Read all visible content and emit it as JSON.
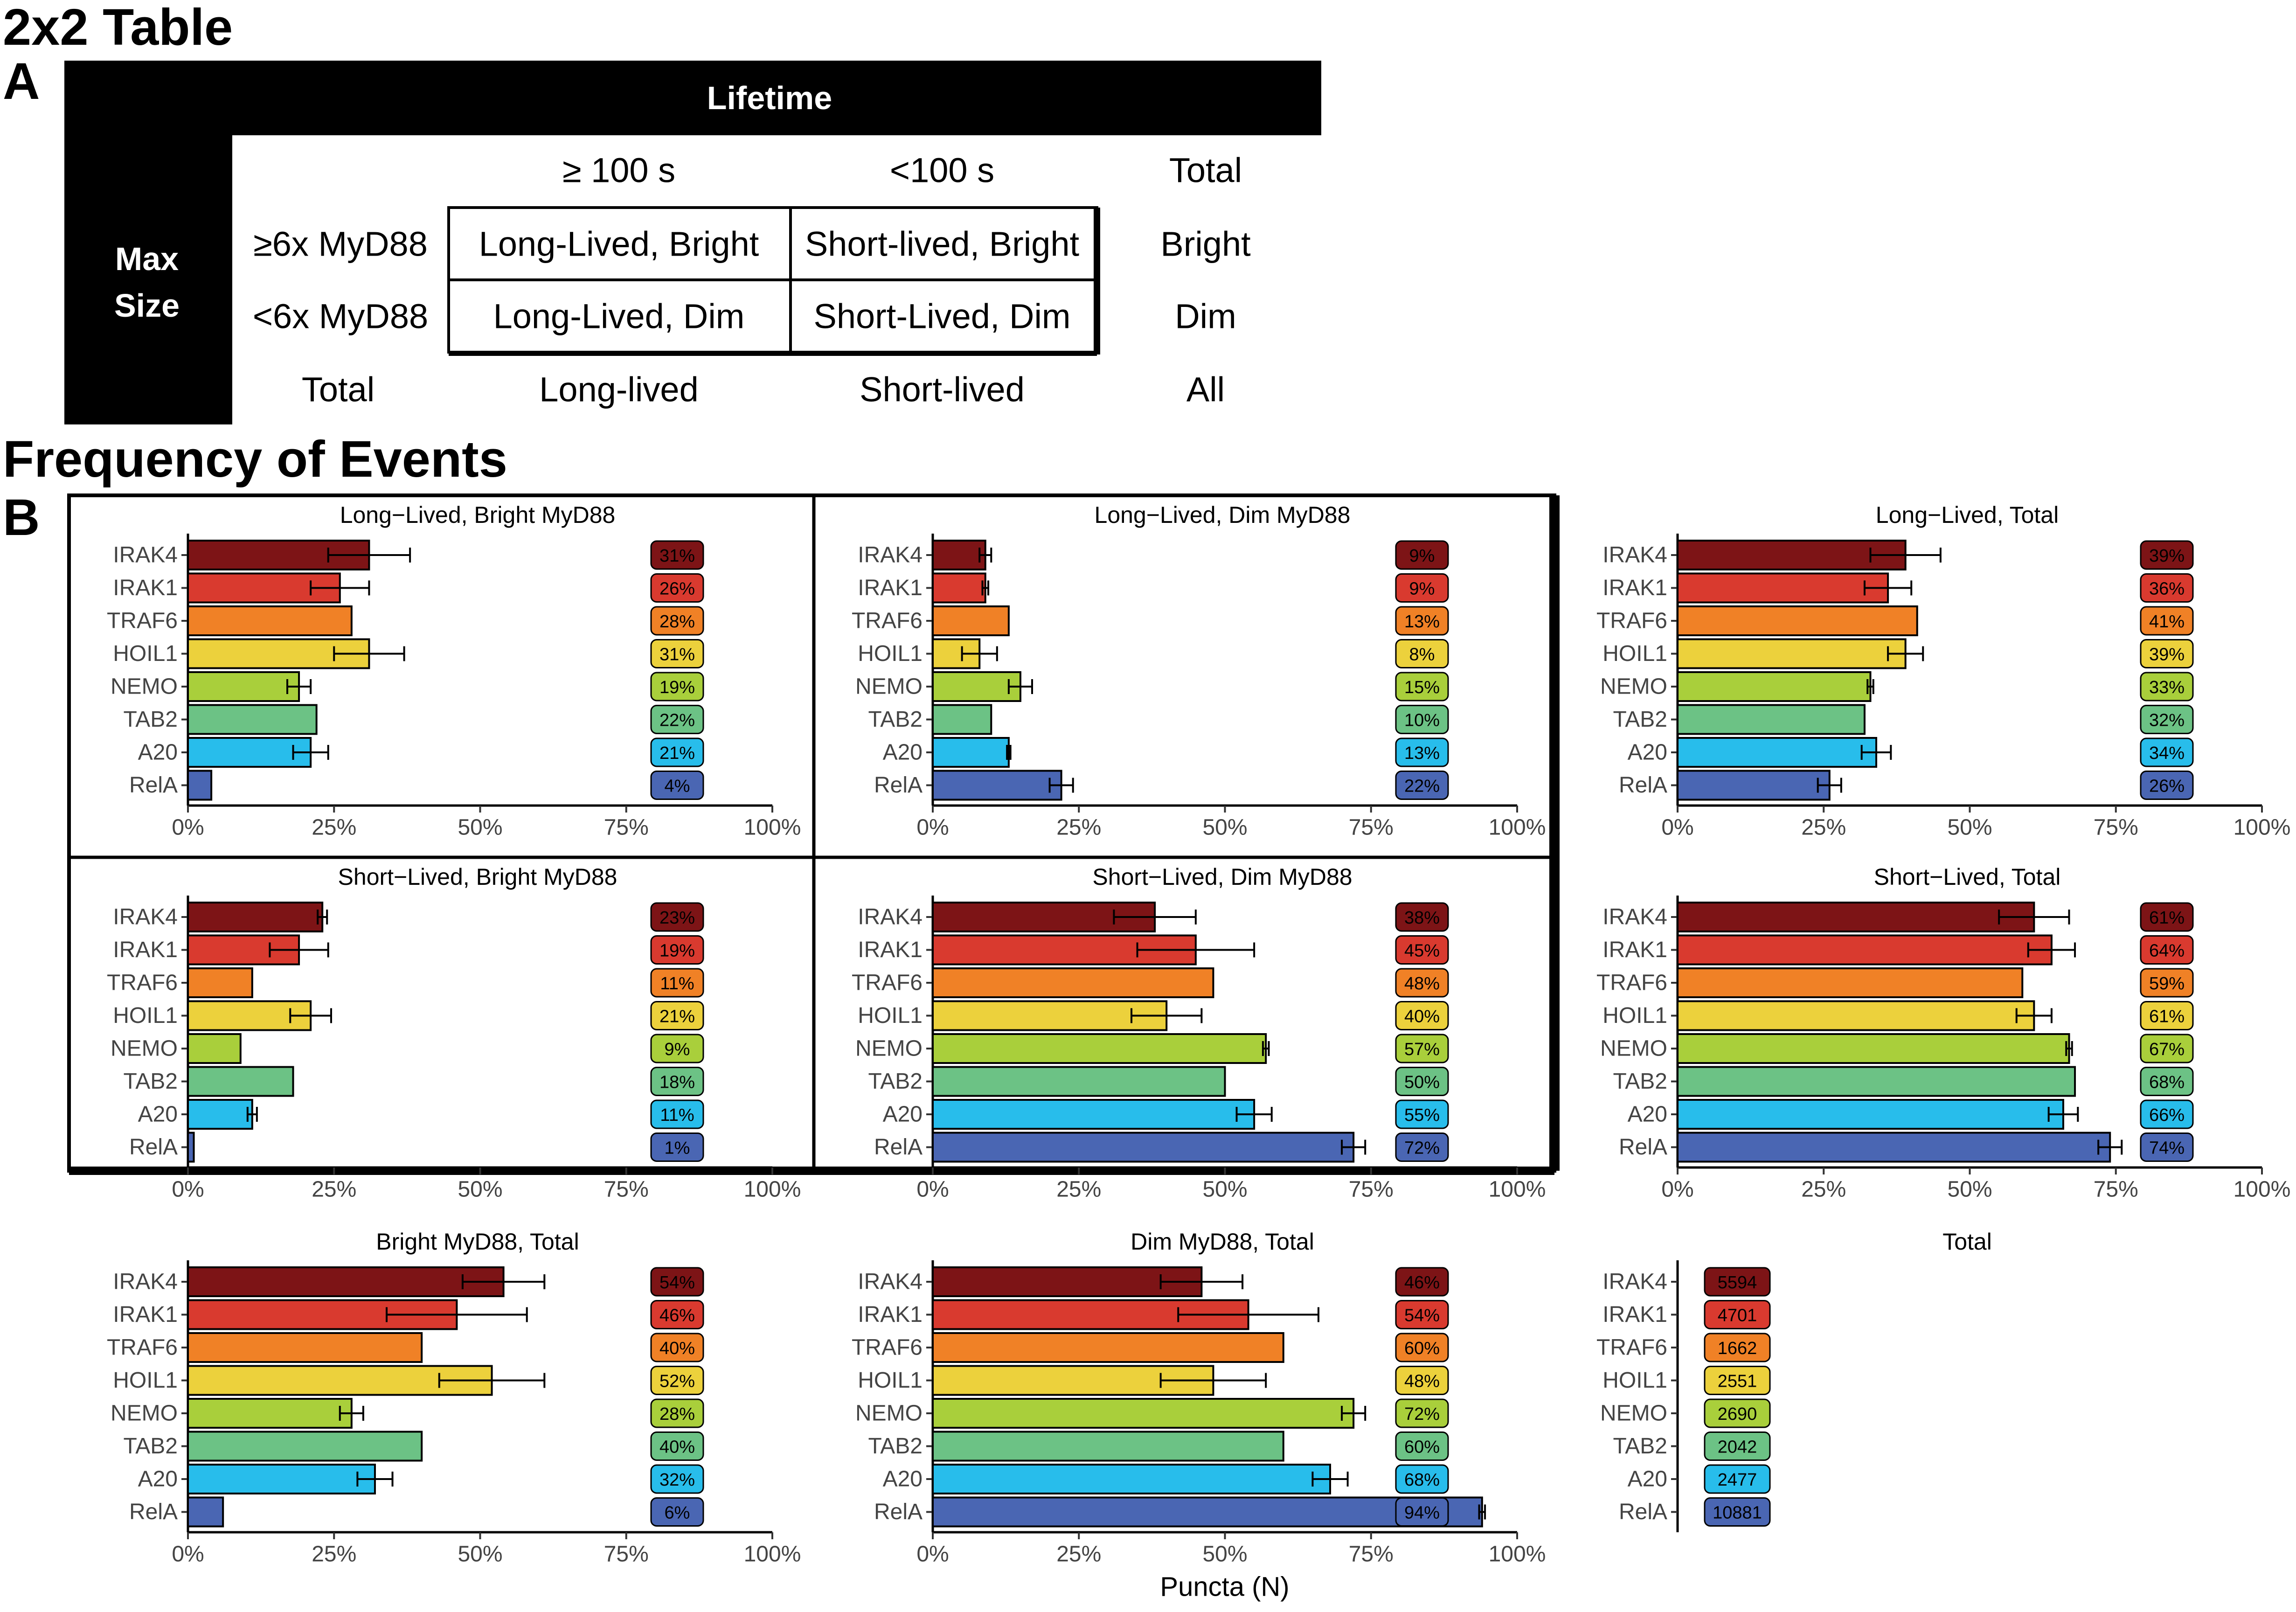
{
  "headings": {
    "table_title": "2x2 Table",
    "panel_a": "A",
    "freq_title": "Frequency of Events",
    "panel_b": "B"
  },
  "table": {
    "col_header": "Lifetime",
    "row_header_line1": "Max",
    "row_header_line2": "Size",
    "col_labels": [
      "≥ 100 s",
      "<100 s",
      "Total"
    ],
    "row_labels": [
      "≥6x MyD88",
      "<6x MyD88",
      "Total"
    ],
    "cells": [
      [
        "Long-Lived, Bright",
        "Short-lived, Bright",
        "Bright"
      ],
      [
        "Long-Lived, Dim",
        "Short-Lived, Dim",
        "Dim"
      ],
      [
        "Long-lived",
        "Short-lived",
        "All"
      ]
    ]
  },
  "colors": {
    "IRAK4": "#7d1416",
    "IRAK1": "#d93a2f",
    "TRAF6": "#f08126",
    "HOIL1": "#ecd13c",
    "NEMO": "#a9cf3b",
    "TAB2": "#6cc285",
    "A20": "#28bdeb",
    "RelA": "#4a66b3"
  },
  "chart_data": [
    {
      "type": "bar",
      "title": "Long−Lived, Bright MyD88",
      "categories": [
        "IRAK4",
        "IRAK1",
        "TRAF6",
        "HOIL1",
        "NEMO",
        "TAB2",
        "A20",
        "RelA"
      ],
      "values": [
        31,
        26,
        28,
        31,
        19,
        22,
        21,
        4
      ],
      "errors": [
        7,
        5,
        0,
        6,
        2,
        0,
        3,
        0
      ],
      "labels": [
        "31%",
        "26%",
        "28%",
        "31%",
        "19%",
        "22%",
        "21%",
        "4%"
      ],
      "xticks": [
        "0%",
        "25%",
        "50%",
        "75%",
        "100%"
      ],
      "xlim": [
        0,
        100
      ]
    },
    {
      "type": "bar",
      "title": "Long−Lived, Dim MyD88",
      "categories": [
        "IRAK4",
        "IRAK1",
        "TRAF6",
        "HOIL1",
        "NEMO",
        "TAB2",
        "A20",
        "RelA"
      ],
      "values": [
        9,
        9,
        13,
        8,
        15,
        10,
        13,
        22
      ],
      "errors": [
        1,
        0.5,
        0,
        3,
        2,
        0,
        0.3,
        2
      ],
      "labels": [
        "9%",
        "9%",
        "13%",
        "8%",
        "15%",
        "10%",
        "13%",
        "22%"
      ],
      "xticks": [
        "0%",
        "25%",
        "50%",
        "75%",
        "100%"
      ],
      "xlim": [
        0,
        100
      ]
    },
    {
      "type": "bar",
      "title": "Long−Lived, Total",
      "categories": [
        "IRAK4",
        "IRAK1",
        "TRAF6",
        "HOIL1",
        "NEMO",
        "TAB2",
        "A20",
        "RelA"
      ],
      "values": [
        39,
        36,
        41,
        39,
        33,
        32,
        34,
        26
      ],
      "errors": [
        6,
        4,
        0,
        3,
        0.5,
        0,
        2.5,
        2
      ],
      "labels": [
        "39%",
        "36%",
        "41%",
        "39%",
        "33%",
        "32%",
        "34%",
        "26%"
      ],
      "xticks": [
        "0%",
        "25%",
        "50%",
        "75%",
        "100%"
      ],
      "xlim": [
        0,
        100
      ]
    },
    {
      "type": "bar",
      "title": "Short−Lived, Bright MyD88",
      "categories": [
        "IRAK4",
        "IRAK1",
        "TRAF6",
        "HOIL1",
        "NEMO",
        "TAB2",
        "A20",
        "RelA"
      ],
      "values": [
        23,
        19,
        11,
        21,
        9,
        18,
        11,
        1
      ],
      "errors": [
        0.8,
        5,
        0,
        3.5,
        0,
        0,
        0.8,
        0
      ],
      "labels": [
        "23%",
        "19%",
        "11%",
        "21%",
        "9%",
        "18%",
        "11%",
        "1%"
      ],
      "xticks": [
        "0%",
        "25%",
        "50%",
        "75%",
        "100%"
      ],
      "xlim": [
        0,
        100
      ]
    },
    {
      "type": "bar",
      "title": "Short−Lived, Dim MyD88",
      "categories": [
        "IRAK4",
        "IRAK1",
        "TRAF6",
        "HOIL1",
        "NEMO",
        "TAB2",
        "A20",
        "RelA"
      ],
      "values": [
        38,
        45,
        48,
        40,
        57,
        50,
        55,
        72
      ],
      "errors": [
        7,
        10,
        0,
        6,
        0.5,
        0,
        3,
        2
      ],
      "labels": [
        "38%",
        "45%",
        "48%",
        "40%",
        "57%",
        "50%",
        "55%",
        "72%"
      ],
      "xticks": [
        "0%",
        "25%",
        "50%",
        "75%",
        "100%"
      ],
      "xlim": [
        0,
        100
      ]
    },
    {
      "type": "bar",
      "title": "Short−Lived, Total",
      "categories": [
        "IRAK4",
        "IRAK1",
        "TRAF6",
        "HOIL1",
        "NEMO",
        "TAB2",
        "A20",
        "RelA"
      ],
      "values": [
        61,
        64,
        59,
        61,
        67,
        68,
        66,
        74
      ],
      "errors": [
        6,
        4,
        0,
        3,
        0.5,
        0,
        2.5,
        2
      ],
      "labels": [
        "61%",
        "64%",
        "59%",
        "61%",
        "67%",
        "68%",
        "66%",
        "74%"
      ],
      "xticks": [
        "0%",
        "25%",
        "50%",
        "75%",
        "100%"
      ],
      "xlim": [
        0,
        100
      ]
    },
    {
      "type": "bar",
      "title": "Bright MyD88, Total",
      "categories": [
        "IRAK4",
        "IRAK1",
        "TRAF6",
        "HOIL1",
        "NEMO",
        "TAB2",
        "A20",
        "RelA"
      ],
      "values": [
        54,
        46,
        40,
        52,
        28,
        40,
        32,
        6
      ],
      "errors": [
        7,
        12,
        0,
        9,
        2,
        0,
        3,
        0
      ],
      "labels": [
        "54%",
        "46%",
        "40%",
        "52%",
        "28%",
        "40%",
        "32%",
        "6%"
      ],
      "xticks": [
        "0%",
        "25%",
        "50%",
        "75%",
        "100%"
      ],
      "xlim": [
        0,
        100
      ]
    },
    {
      "type": "bar",
      "title": "Dim MyD88, Total",
      "categories": [
        "IRAK4",
        "IRAK1",
        "TRAF6",
        "HOIL1",
        "NEMO",
        "TAB2",
        "A20",
        "RelA"
      ],
      "values": [
        46,
        54,
        60,
        48,
        72,
        60,
        68,
        94
      ],
      "errors": [
        7,
        12,
        0,
        9,
        2,
        0,
        3,
        0.5
      ],
      "labels": [
        "46%",
        "54%",
        "60%",
        "48%",
        "72%",
        "60%",
        "68%",
        "94%"
      ],
      "xticks": [
        "0%",
        "25%",
        "50%",
        "75%",
        "100%"
      ],
      "xlim": [
        0,
        100
      ],
      "xlabel": "Puncta (N)"
    },
    {
      "type": "table",
      "title": "Total",
      "categories": [
        "IRAK4",
        "IRAK1",
        "TRAF6",
        "HOIL1",
        "NEMO",
        "TAB2",
        "A20",
        "RelA"
      ],
      "labels": [
        "5594",
        "4701",
        "1662",
        "2551",
        "2690",
        "2042",
        "2477",
        "10881"
      ]
    }
  ]
}
